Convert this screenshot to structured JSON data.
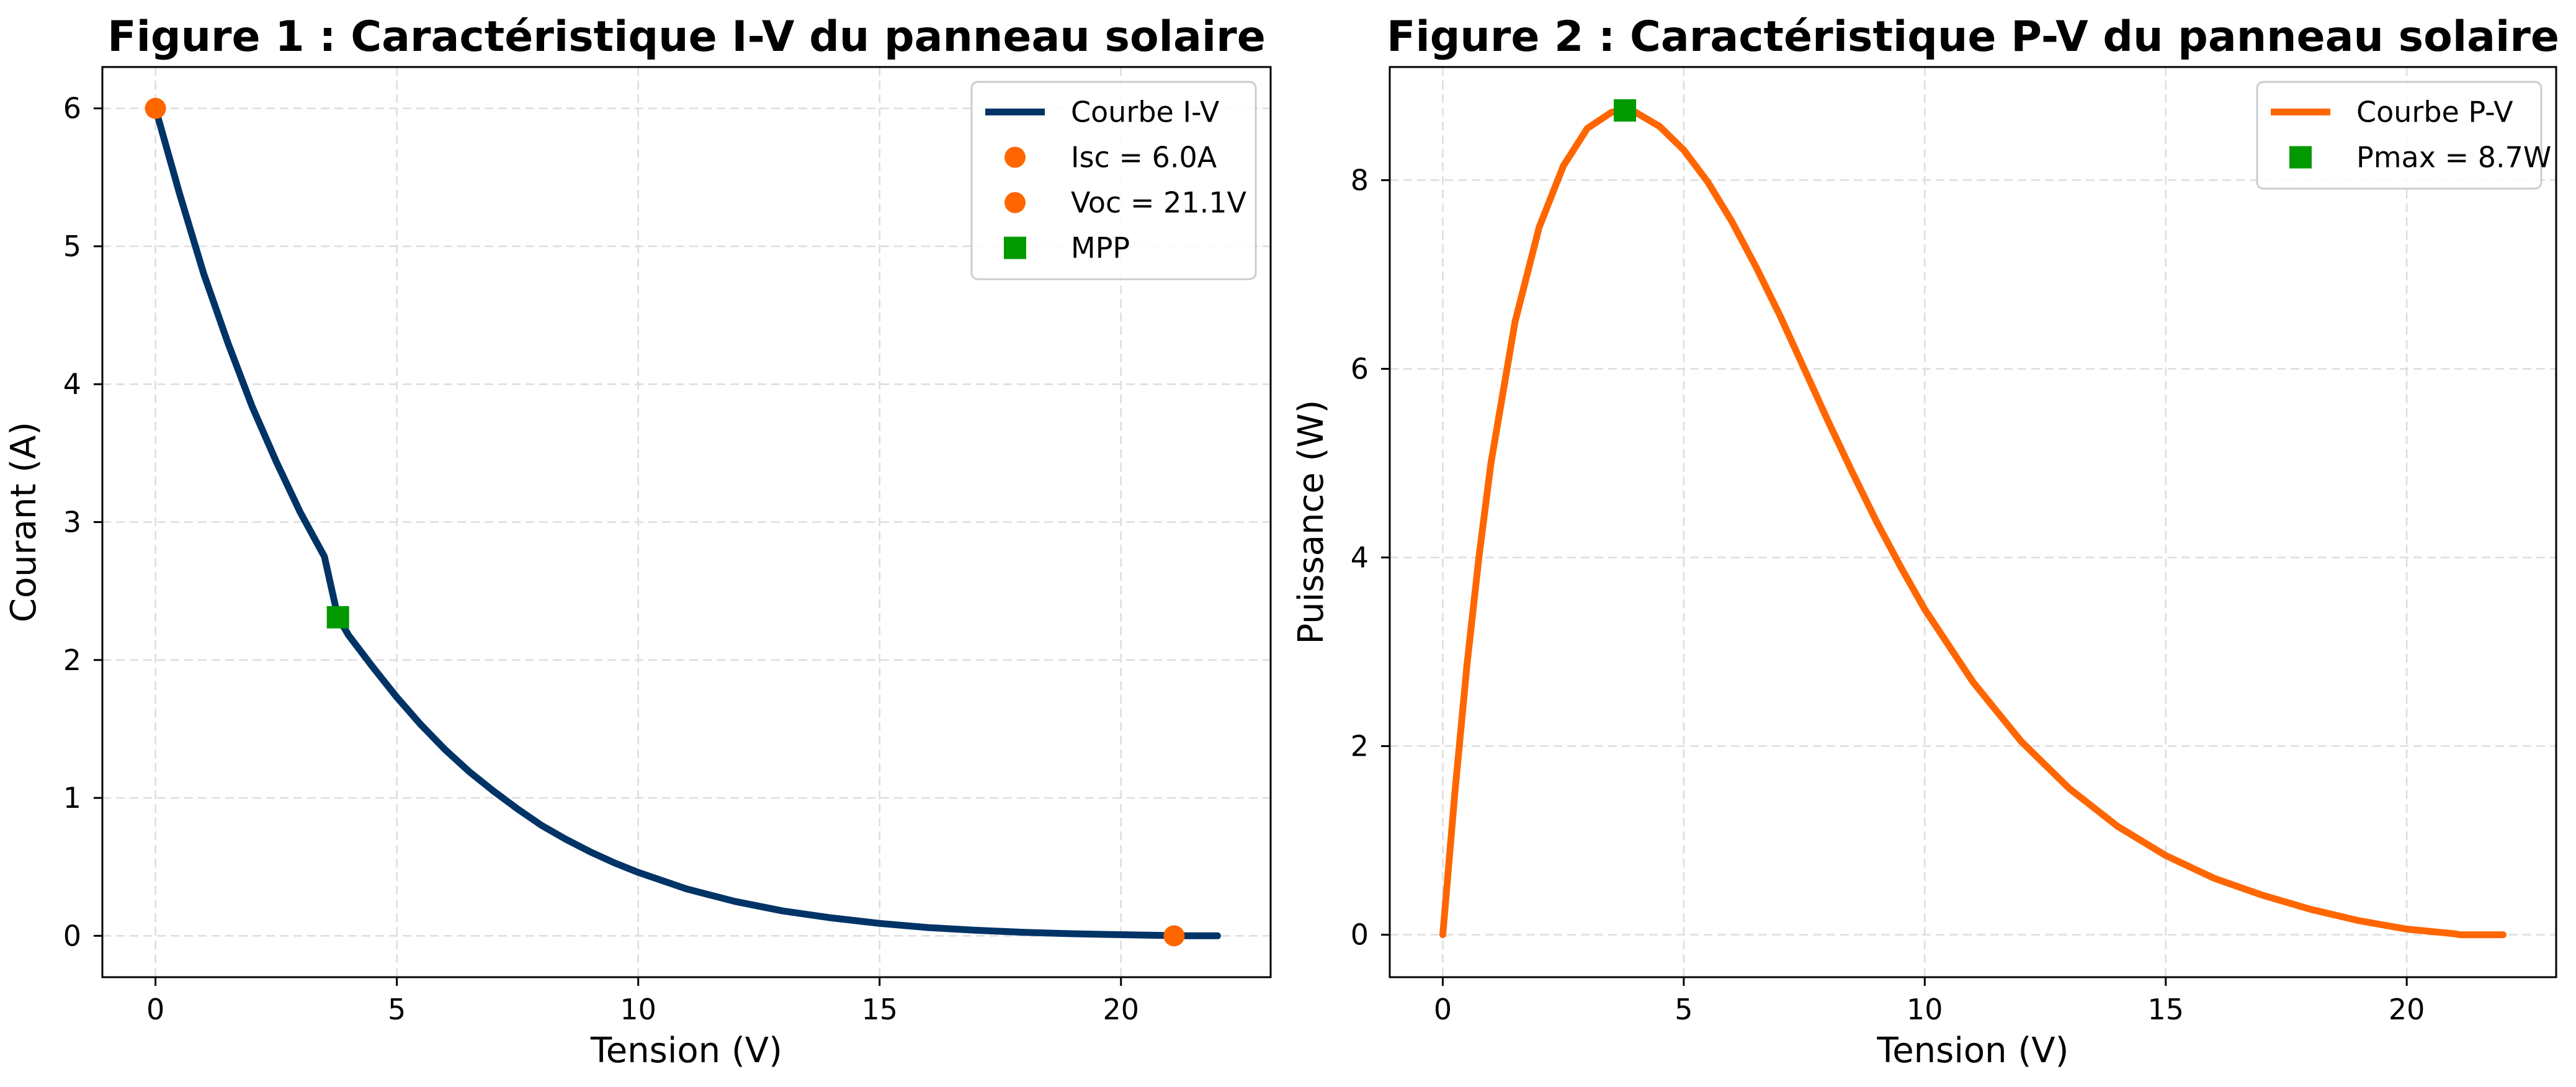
{
  "chart_data": [
    {
      "type": "line",
      "title": "Figure 1 : Caractéristique I-V du panneau solaire",
      "xlabel": "Tension (V)",
      "ylabel": "Courant (A)",
      "xlim": [
        -1.1,
        23.1
      ],
      "ylim": [
        -0.3,
        6.3
      ],
      "xticks": [
        0,
        5,
        10,
        15,
        20
      ],
      "yticks": [
        0,
        1,
        2,
        3,
        4,
        5,
        6
      ],
      "grid": true,
      "legend_position": "top-right",
      "series": [
        {
          "name": "Courbe I-V",
          "kind": "line",
          "color": "#003366",
          "x": [
            0,
            0.5,
            1,
            1.5,
            2,
            2.5,
            3,
            3.5,
            3.78,
            4,
            4.5,
            5,
            5.5,
            6,
            6.5,
            7,
            7.5,
            8,
            8.5,
            9,
            9.5,
            10,
            11,
            12,
            13,
            14,
            15,
            16,
            17,
            18,
            19,
            20,
            21,
            21.1,
            22
          ],
          "y": [
            6.0,
            5.38,
            4.8,
            4.3,
            3.84,
            3.44,
            3.07,
            2.75,
            2.31,
            2.18,
            1.95,
            1.73,
            1.53,
            1.35,
            1.19,
            1.05,
            0.92,
            0.8,
            0.7,
            0.61,
            0.53,
            0.46,
            0.34,
            0.25,
            0.18,
            0.13,
            0.09,
            0.06,
            0.04,
            0.025,
            0.015,
            0.008,
            0.002,
            0.0,
            0.0
          ]
        },
        {
          "name": "Isc = 6.0A",
          "kind": "marker-circle",
          "color": "#FF6600",
          "x": [
            0
          ],
          "y": [
            6.0
          ]
        },
        {
          "name": "Voc = 21.1V",
          "kind": "marker-circle",
          "color": "#FF6600",
          "x": [
            21.1
          ],
          "y": [
            0.0
          ]
        },
        {
          "name": "MPP",
          "kind": "marker-square",
          "color": "#009900",
          "x": [
            3.78
          ],
          "y": [
            2.31
          ]
        }
      ]
    },
    {
      "type": "line",
      "title": "Figure 2 : Caractéristique P-V du panneau solaire",
      "xlabel": "Tension (V)",
      "ylabel": "Puissance (W)",
      "xlim": [
        -1.1,
        23.1
      ],
      "ylim": [
        -0.45,
        9.2
      ],
      "xticks": [
        0,
        5,
        10,
        15,
        20
      ],
      "yticks": [
        0,
        2,
        4,
        6,
        8
      ],
      "grid": true,
      "legend_position": "top-right",
      "series": [
        {
          "name": "Courbe P-V",
          "kind": "line",
          "color": "#FF6600",
          "x": [
            0,
            0.25,
            0.5,
            0.75,
            1,
            1.5,
            2,
            2.5,
            3,
            3.5,
            3.78,
            4,
            4.5,
            5,
            5.5,
            6,
            6.5,
            7,
            7.5,
            8,
            8.5,
            9,
            9.5,
            10,
            11,
            12,
            13,
            14,
            15,
            16,
            17,
            18,
            19,
            20,
            21,
            21.1,
            22
          ],
          "y": [
            0,
            1.5,
            2.85,
            4.0,
            5.0,
            6.5,
            7.5,
            8.15,
            8.55,
            8.72,
            8.74,
            8.72,
            8.57,
            8.32,
            7.98,
            7.56,
            7.08,
            6.56,
            6.0,
            5.44,
            4.9,
            4.38,
            3.9,
            3.45,
            2.68,
            2.05,
            1.55,
            1.15,
            0.84,
            0.6,
            0.42,
            0.27,
            0.15,
            0.06,
            0.01,
            0.0,
            0.0
          ]
        },
        {
          "name": "Pmax = 8.7W",
          "kind": "marker-square",
          "color": "#009900",
          "x": [
            3.78
          ],
          "y": [
            8.74
          ]
        }
      ]
    }
  ]
}
